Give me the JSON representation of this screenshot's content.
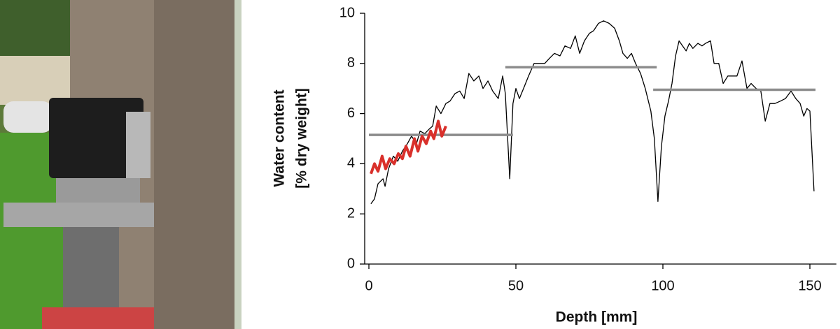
{
  "chart_data": {
    "type": "line",
    "xlabel": "Depth [mm]",
    "ylabel": [
      "Water content",
      "[% dry weight]"
    ],
    "xlim": [
      0,
      159
    ],
    "xticks": [
      0,
      50,
      100,
      150
    ],
    "ylim": [
      0,
      10
    ],
    "yticks": [
      0,
      2,
      4,
      6,
      8,
      10
    ],
    "series": [
      {
        "color": "#000000",
        "width": 1.3,
        "x": [
          0.7,
          1.9,
          3.1,
          4.8,
          5.5,
          6.7,
          8.3,
          9.8,
          11.4,
          13.1,
          14.5,
          16.2,
          17.4,
          19,
          20.7,
          21.7,
          22.9,
          24.5,
          26.2,
          27.6,
          29.3,
          30.9,
          32.4,
          34,
          35.7,
          37.4,
          38.8,
          40.5,
          42.1,
          44,
          45.5,
          46.4,
          47.9,
          49,
          50,
          51.2,
          52.6,
          54.3,
          56.2,
          57.9,
          59.8,
          61.4,
          63.1,
          65,
          66.7,
          68.6,
          70.2,
          71.7,
          73.3,
          75,
          76.4,
          78.1,
          79.8,
          81.7,
          83.6,
          85.2,
          86.4,
          87.9,
          89.3,
          90.7,
          92.4,
          94,
          95.9,
          97.1,
          98.3,
          99.5,
          100.7,
          101.9,
          103.1,
          104.3,
          105.5,
          106.7,
          107.9,
          109,
          110.2,
          111.9,
          113.3,
          114.5,
          116.2,
          117.4,
          119,
          120.5,
          122.1,
          123.8,
          125.2,
          126.9,
          128.6,
          130,
          131.7,
          133.3,
          134.8,
          136.4,
          138.1,
          140,
          141.7,
          143.6,
          145.2,
          146.7,
          147.9,
          149,
          150,
          151.4
        ],
        "values": [
          2.4,
          2.6,
          3.2,
          3.4,
          3.1,
          3.8,
          4.3,
          4.1,
          4.5,
          4.8,
          5.1,
          4.8,
          5.3,
          5.2,
          5.4,
          5.5,
          6.3,
          6.0,
          6.4,
          6.5,
          6.8,
          6.9,
          6.6,
          7.6,
          7.3,
          7.5,
          7.0,
          7.3,
          6.9,
          6.6,
          7.5,
          6.8,
          3.4,
          6.4,
          7.0,
          6.6,
          7.0,
          7.5,
          8.0,
          8.0,
          8.0,
          8.2,
          8.4,
          8.3,
          8.7,
          8.6,
          9.1,
          8.4,
          8.9,
          9.2,
          9.3,
          9.6,
          9.7,
          9.6,
          9.4,
          8.9,
          8.4,
          8.2,
          8.4,
          8.0,
          7.6,
          7.0,
          6.1,
          5.0,
          2.5,
          4.7,
          5.9,
          6.5,
          7.2,
          8.3,
          8.9,
          8.7,
          8.5,
          8.8,
          8.6,
          8.8,
          8.7,
          8.8,
          8.9,
          8.0,
          8.0,
          7.2,
          7.5,
          7.5,
          7.5,
          8.1,
          7.0,
          7.2,
          7.0,
          6.9,
          5.7,
          6.4,
          6.4,
          6.5,
          6.6,
          6.9,
          6.6,
          6.4,
          5.9,
          6.2,
          6.1,
          2.9
        ]
      },
      {
        "color": "#8c8c8c",
        "width": 3.5,
        "x": [
          0,
          49
        ],
        "values": [
          5.15,
          5.15
        ]
      },
      {
        "color": "#8c8c8c",
        "width": 3.5,
        "x": [
          46.4,
          97.9
        ],
        "values": [
          7.85,
          7.85
        ]
      },
      {
        "color": "#8c8c8c",
        "width": 3.5,
        "x": [
          96.7,
          151.9
        ],
        "values": [
          6.95,
          6.95
        ]
      },
      {
        "color": "#d9302b",
        "width": 4,
        "x": [
          0.7,
          1.9,
          3.1,
          4.5,
          5.7,
          7.1,
          8.6,
          10,
          11.4,
          12.6,
          14,
          15.5,
          16.7,
          18.1,
          19.5,
          21,
          22.1,
          23.6,
          24.8,
          26.2
        ],
        "values": [
          3.6,
          4.0,
          3.7,
          4.3,
          3.8,
          4.2,
          4.0,
          4.4,
          4.2,
          4.7,
          4.3,
          5.0,
          4.5,
          5.1,
          4.8,
          5.3,
          5.0,
          5.7,
          5.1,
          5.5
        ]
      }
    ]
  }
}
